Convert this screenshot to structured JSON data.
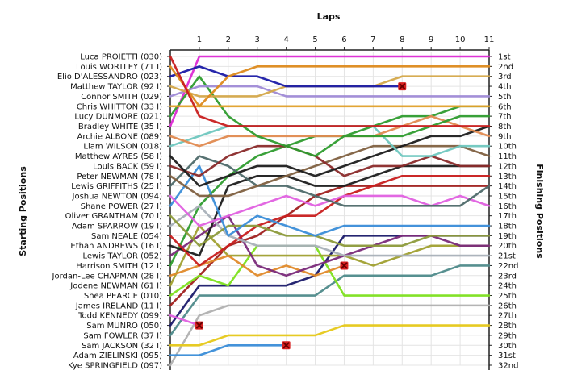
{
  "chart_data": {
    "type": "line",
    "title": "",
    "xlabel": "Laps",
    "ylabel_left": "Starting Positions",
    "ylabel_right": "Finishing Positions",
    "laps": [
      1,
      2,
      3,
      4,
      5,
      6,
      7,
      8,
      9,
      10,
      11
    ],
    "positions": [
      "1st",
      "2nd",
      "3rd",
      "4th",
      "5th",
      "6th",
      "7th",
      "8th",
      "9th",
      "10th",
      "11th",
      "12th",
      "13th",
      "14th",
      "15th",
      "16th",
      "17th",
      "18th",
      "19th",
      "20th",
      "21st",
      "22nd",
      "23rd",
      "24th",
      "25th",
      "26th",
      "27th",
      "28th",
      "29th",
      "30th",
      "31st",
      "32nd"
    ],
    "grid": true,
    "retired_marker": "x",
    "series": [
      {
        "name": "Luca PROIETTI (030)",
        "color": "#c81e1e",
        "positions": [
          1,
          7,
          8,
          8,
          8,
          8,
          8,
          8,
          8,
          8,
          8,
          8
        ]
      },
      {
        "name": "Louis WORTLEY (71 I)",
        "color": "#dd8a1c",
        "positions": [
          2,
          6,
          3,
          2,
          2,
          2,
          2,
          2,
          2,
          2,
          2,
          2
        ]
      },
      {
        "name": "Elio D'ALESSANDRO (023)",
        "color": "#1a1aa6",
        "positions": [
          3,
          2,
          3,
          3,
          4,
          4,
          4,
          4,
          4
        ]
      },
      {
        "name": "Matthew TAYLOR (92 I)",
        "color": "#d4a84a",
        "positions": [
          4,
          5,
          5,
          5,
          4,
          4,
          4,
          4,
          3,
          3,
          3,
          3
        ]
      },
      {
        "name": "Connor SMITH (029)",
        "color": "#9f8ad6",
        "positions": [
          5,
          4,
          4,
          4,
          5,
          5,
          5,
          5,
          5,
          5,
          5,
          5
        ]
      },
      {
        "name": "Chris WHITTON (33 I)",
        "color": "#e0a02a",
        "positions": [
          6,
          6,
          6,
          6,
          6,
          6,
          6,
          6,
          6,
          6,
          6,
          6
        ]
      },
      {
        "name": "Lucy DUNMORE (021)",
        "color": "#2e9c2e",
        "positions": [
          7,
          3,
          7,
          9,
          10,
          11,
          9,
          9,
          9,
          8,
          7,
          7
        ]
      },
      {
        "name": "Bradley WHITE (35 I)",
        "color": "#dc2ad4",
        "positions": [
          8,
          1,
          1,
          1,
          1,
          1,
          1,
          1,
          1,
          1,
          1,
          1
        ]
      },
      {
        "name": "Archie ALBONE (089)",
        "color": "#e08a50",
        "positions": [
          9,
          10,
          9,
          9,
          9,
          9,
          9,
          9,
          8,
          7,
          8,
          9
        ]
      },
      {
        "name": "Liam WILSON (018)",
        "color": "#6fc7bf",
        "positions": [
          10,
          9,
          8,
          8,
          8,
          8,
          8,
          8,
          11,
          11,
          10,
          10
        ]
      },
      {
        "name": "Matthew AYRES (58 I)",
        "color": "#1c1c1c",
        "positions": [
          11,
          14,
          13,
          12,
          12,
          13,
          12,
          11,
          10,
          9,
          9,
          8
        ]
      },
      {
        "name": "Louis BACK (59 I)",
        "color": "#8a2a2a",
        "positions": [
          12,
          13,
          11,
          10,
          10,
          11,
          13,
          12,
          12,
          11,
          12,
          12
        ]
      },
      {
        "name": "Peter NEWMAN (78 I)",
        "color": "#806040",
        "positions": [
          13,
          15,
          15,
          14,
          13,
          12,
          11,
          10,
          10,
          10,
          10,
          11
        ]
      },
      {
        "name": "Lewis GRIFFITHS (25 I)",
        "color": "#4e6a6a",
        "positions": [
          14,
          11,
          12,
          14,
          14,
          15,
          16,
          16,
          16,
          16,
          16,
          14
        ]
      },
      {
        "name": "Joshua NEWTON (094)",
        "color": "#e060e0",
        "positions": [
          15,
          18,
          17,
          16,
          15,
          16,
          15,
          15,
          15,
          16,
          15,
          16
        ]
      },
      {
        "name": "Shane POWER (27 I)",
        "color": "#3a8dd8",
        "positions": [
          16,
          12,
          19,
          17,
          18,
          19,
          18,
          18,
          18,
          18,
          18,
          18
        ]
      },
      {
        "name": "Oliver GRANTHAM (70 I)",
        "color": "#8c9a3a",
        "positions": [
          17,
          20,
          18,
          18,
          19,
          19,
          20,
          20,
          20,
          19,
          19,
          19
        ]
      },
      {
        "name": "Adam SPARROW (19 I)",
        "color": "#a8b0b8",
        "positions": [
          18,
          16,
          19,
          20,
          20,
          20,
          21,
          21,
          21,
          21,
          21,
          21
        ]
      },
      {
        "name": "Sam NEALE (054)",
        "color": "#c81e1e",
        "positions": [
          19,
          22,
          20,
          18,
          17,
          17,
          15,
          14,
          13,
          13,
          13,
          13
        ]
      },
      {
        "name": "Ethan ANDREWS (16 I)",
        "color": "#1c1c1c",
        "positions": [
          20,
          21,
          14,
          13,
          13,
          14,
          14,
          13,
          12,
          12,
          12,
          12
        ]
      },
      {
        "name": "Lewis TAYLOR (052)",
        "color": "#7a2a7a",
        "positions": [
          21,
          19,
          17,
          22,
          23,
          22,
          21,
          20,
          19,
          19,
          20,
          20
        ]
      },
      {
        "name": "Harrison SMITH (12 I)",
        "color": "#2e9c2e",
        "positions": [
          22,
          16,
          13,
          11,
          10,
          9,
          9,
          8,
          7,
          7,
          6,
          6
        ]
      },
      {
        "name": "Jordan-Lee CHAPMAN (28 I)",
        "color": "#e08a2a",
        "positions": [
          23,
          22,
          21,
          23,
          22,
          23,
          22
        ]
      },
      {
        "name": "Jodene NEWMAN (61 I)",
        "color": "#a0a030",
        "positions": [
          24,
          18,
          21,
          21,
          21,
          21,
          21,
          22,
          21,
          20,
          20,
          20
        ]
      },
      {
        "name": "Shea PEARCE (010)",
        "color": "#7de01e",
        "positions": [
          25,
          23,
          24,
          20,
          20,
          20,
          25,
          25,
          25,
          25,
          25,
          25
        ]
      },
      {
        "name": "James IRELAND (11 I)",
        "color": "#a0201e",
        "positions": [
          26,
          23,
          20,
          19,
          17,
          15,
          14,
          14,
          14,
          14,
          14,
          14
        ]
      },
      {
        "name": "Todd KENNEDY (099)",
        "color": "#e060e0",
        "positions": [
          27,
          28
        ]
      },
      {
        "name": "Sam MUNRO (050)",
        "color": "#1a1a6a",
        "positions": [
          28,
          24,
          24,
          24,
          24,
          23,
          19,
          19,
          19,
          19,
          19,
          19
        ]
      },
      {
        "name": "Sam FOWLER (37 I)",
        "color": "#4e8a8a",
        "positions": [
          29,
          25,
          25,
          25,
          25,
          25,
          23,
          23,
          23,
          23,
          22,
          22
        ]
      },
      {
        "name": "Sam JACKSON (32 I)",
        "color": "#e6c818",
        "positions": [
          30,
          30,
          29,
          29,
          29,
          29,
          28,
          28,
          28,
          28,
          28,
          28
        ]
      },
      {
        "name": "Adam ZIELINSKI (095)",
        "color": "#3a8dd8",
        "positions": [
          31,
          31,
          30,
          30,
          30
        ]
      },
      {
        "name": "Kye SPRINGFIELD (097)",
        "color": "#b0b0b0",
        "positions": [
          32,
          27,
          26,
          26,
          26,
          26,
          26,
          26,
          26,
          26,
          26,
          26
        ]
      }
    ]
  }
}
